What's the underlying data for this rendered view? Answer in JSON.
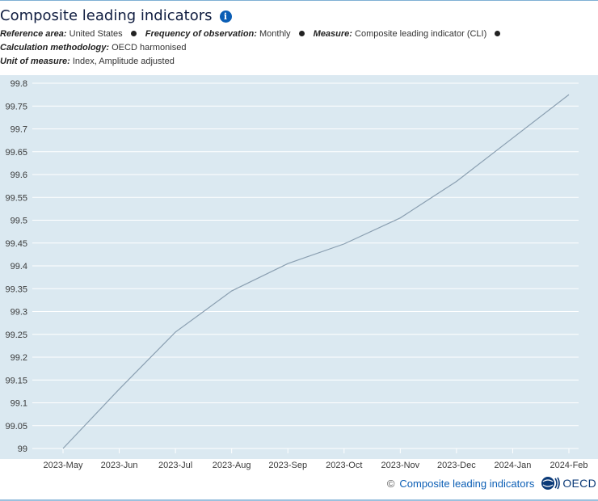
{
  "header": {
    "title": "Composite leading indicators"
  },
  "meta": {
    "reference_area_key": "Reference area:",
    "reference_area_val": "United States",
    "frequency_key": "Frequency of observation:",
    "frequency_val": "Monthly",
    "measure_key": "Measure:",
    "measure_val": "Composite leading indicator (CLI)",
    "method_key": "Calculation methodology:",
    "method_val": "OECD harmonised",
    "unit_key": "Unit of measure:",
    "unit_val": "Index, Amplitude adjusted"
  },
  "footer": {
    "copyright": "©",
    "source_link": "Composite leading indicators",
    "logo_text": "OECD"
  },
  "colors": {
    "plot_bg": "#dbe9f1",
    "grid": "#ffffff",
    "line": "#8a9fb1",
    "tick_text": "#3a3a3a"
  },
  "chart_data": {
    "type": "line",
    "title": "Composite leading indicators",
    "xlabel": "",
    "ylabel": "",
    "categories": [
      "2023-May",
      "2023-Jun",
      "2023-Jul",
      "2023-Aug",
      "2023-Sep",
      "2023-Oct",
      "2023-Nov",
      "2023-Dec",
      "2024-Jan",
      "2024-Feb"
    ],
    "series": [
      {
        "values": [
          99.0,
          99.13,
          99.255,
          99.345,
          99.405,
          99.448,
          99.505,
          99.585,
          99.68,
          99.775
        ]
      }
    ],
    "ylim": [
      99.0,
      99.8
    ],
    "yticks": [
      "99",
      "99.05",
      "99.1",
      "99.15",
      "99.2",
      "99.25",
      "99.3",
      "99.35",
      "99.4",
      "99.45",
      "99.5",
      "99.55",
      "99.6",
      "99.65",
      "99.7",
      "99.75",
      "99.8"
    ],
    "grid": true,
    "legend": "none"
  }
}
